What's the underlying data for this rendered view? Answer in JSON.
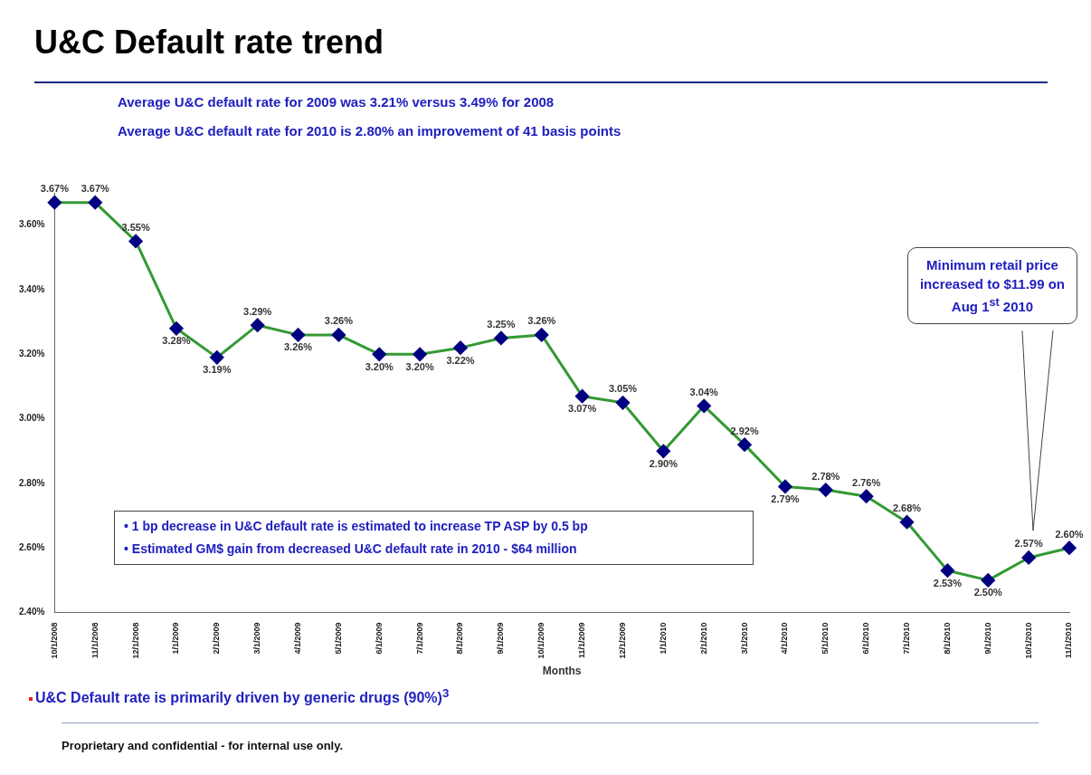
{
  "chart_data": {
    "type": "line",
    "title": "U&C Default rate trend",
    "subtitle": "Average U&C default rate for 2009 was 3.21% versus 3.49% for 2008",
    "xlabel": "Months",
    "categories": [
      "10/1/2008",
      "11/1/2008",
      "12/1/2008",
      "1/1/2009",
      "2/1/2009",
      "3/1/2009",
      "4/1/2009",
      "5/1/2009",
      "6/1/2009",
      "7/1/2009",
      "8/1/2009",
      "9/1/2009",
      "10/1/2009",
      "11/1/2009",
      "12/1/2009",
      "1/1/2010",
      "2/1/2010",
      "3/1/2010",
      "4/1/2010",
      "5/1/2010",
      "6/1/2010",
      "7/1/2010",
      "8/1/2010",
      "9/1/2010",
      "10/1/2010",
      "11/1/2010"
    ],
    "series": [
      {
        "color": "#339933",
        "values": [
          3.67,
          3.67,
          3.55,
          3.28,
          3.19,
          3.29,
          3.26,
          3.26,
          3.2,
          3.2,
          3.22,
          3.25,
          3.26,
          3.07,
          3.05,
          2.9,
          3.04,
          2.92,
          2.79,
          2.78,
          2.76,
          2.68,
          2.53,
          2.5,
          2.57,
          2.6
        ],
        "value_labels": [
          "3.67%",
          "3.67%",
          "3.55%",
          "3.28%",
          "3.19%",
          "3.29%",
          "3.26%",
          "3.26%",
          "3.20%",
          "3.20%",
          "3.22%",
          "3.25%",
          "3.26%",
          "3.07%",
          "3.05%",
          "2.90%",
          "3.04%",
          "2.92%",
          "2.79%",
          "2.78%",
          "2.76%",
          "2.68%",
          "2.53%",
          "2.50%",
          "2.57%",
          "2.60%"
        ]
      }
    ],
    "marker": "diamond",
    "line_style": "solid",
    "grid": false,
    "legend": false,
    "ylim": [
      2.4,
      3.7
    ],
    "yticks": [
      {
        "value": 2.4,
        "label": "2.40%"
      },
      {
        "value": 2.6,
        "label": "2.60%"
      },
      {
        "value": 2.8,
        "label": "2.80%"
      },
      {
        "value": 3.0,
        "label": "3.00%"
      },
      {
        "value": 3.2,
        "label": "3.20%"
      },
      {
        "value": 3.4,
        "label": "3.40%"
      },
      {
        "value": 3.6,
        "label": "3.60%"
      }
    ],
    "annotations": [
      "Average U&C default rate for 2010 is 2.80% an improvement of 41 basis points",
      "Minimum retail price increased to $11.99 on Aug 1$^{st}$ 2010",
      "• 1 bp decrease in U&C default rate is estimated to increase TP ASP by 0.5 bp",
      "• Estimated GM$ gain from decreased U&C default rate in 2010 - $64 million",
      "U&C Default rate is primarily driven by generic drugs (90%)$^{3}$",
      "Proprietary and confidential - for internal use only."
    ]
  }
}
